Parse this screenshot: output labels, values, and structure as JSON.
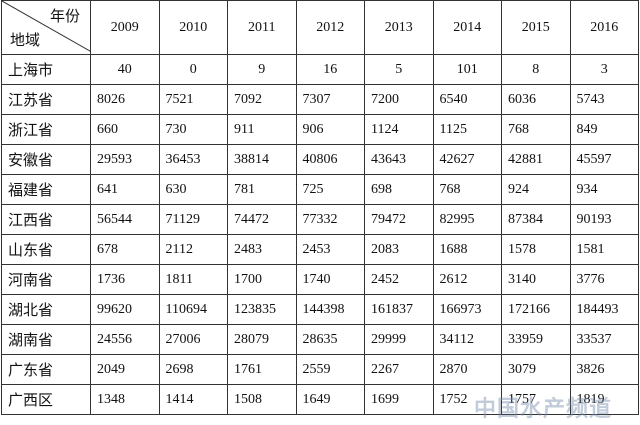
{
  "table": {
    "corner_top": "年份",
    "corner_bottom": "地域",
    "columns": [
      "2009",
      "2010",
      "2011",
      "2012",
      "2013",
      "2014",
      "2015",
      "2016"
    ],
    "rows": [
      [
        "上海市",
        40,
        0,
        9,
        16,
        5,
        101,
        8,
        3
      ],
      [
        "江苏省",
        8026,
        7521,
        7092,
        7307,
        7200,
        6540,
        6036,
        5743
      ],
      [
        "浙江省",
        660,
        730,
        911,
        906,
        1124,
        1125,
        768,
        849
      ],
      [
        "安徽省",
        29593,
        36453,
        38814,
        40806,
        43643,
        42627,
        42881,
        45597
      ],
      [
        "福建省",
        641,
        630,
        781,
        725,
        698,
        768,
        924,
        934
      ],
      [
        "江西省",
        56544,
        71129,
        74472,
        77332,
        79472,
        82995,
        87384,
        90193
      ],
      [
        "山东省",
        678,
        2112,
        2483,
        2453,
        2083,
        1688,
        1578,
        1581
      ],
      [
        "河南省",
        1736,
        1811,
        1700,
        1740,
        2452,
        2612,
        3140,
        3776
      ],
      [
        "湖北省",
        99620,
        110694,
        123835,
        144398,
        161837,
        166973,
        172166,
        184493
      ],
      [
        "湖南省",
        24556,
        27006,
        28079,
        28635,
        29999,
        34112,
        33959,
        33537
      ],
      [
        "广东省",
        2049,
        2698,
        1761,
        2559,
        2267,
        2870,
        3079,
        3826
      ],
      [
        "广西区",
        1348,
        1414,
        1508,
        1649,
        1699,
        1752,
        1757,
        1819
      ]
    ]
  },
  "watermark": "中国水产频道"
}
